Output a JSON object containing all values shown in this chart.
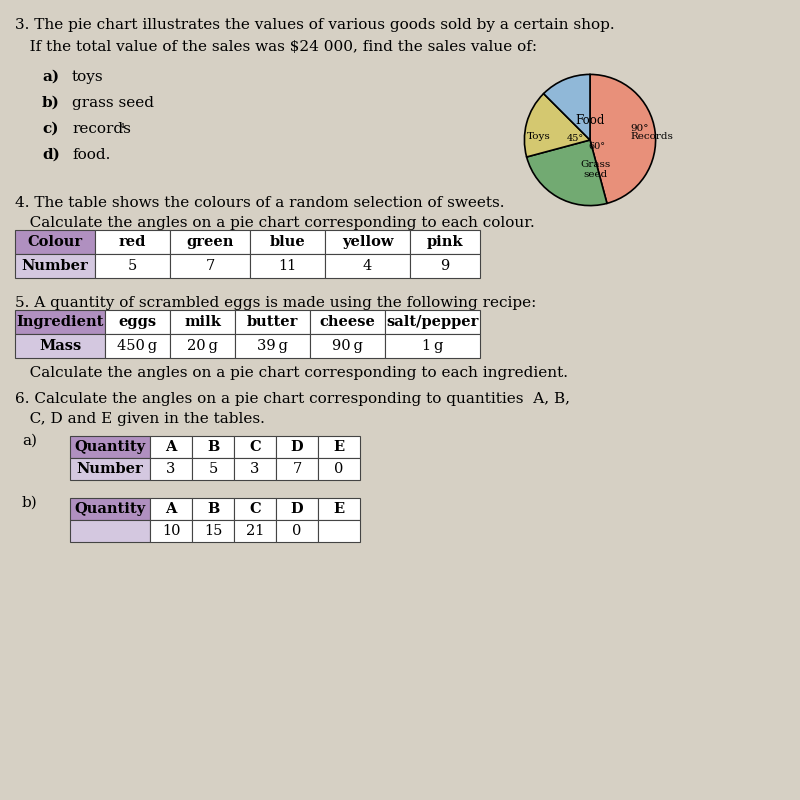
{
  "background_color": "#d6d0c4",
  "q3_line1": "3. The pie chart illustrates the values of various goods sold by a certain shop.",
  "q3_line2": "   If the total value of the sales was $24 000, find the sales value of:",
  "q3_items_bold": [
    "a)",
    "b)",
    "c)",
    "d)"
  ],
  "q3_items_text": [
    "toys",
    "grass seed",
    "records",
    "food."
  ],
  "q3_items_extra": [
    "",
    "",
    "₄",
    ""
  ],
  "pie_angles": [
    165,
    90,
    60,
    45
  ],
  "pie_colors": [
    "#e8907a",
    "#72aa72",
    "#d4c870",
    "#90b8d8"
  ],
  "pie_startangle": 90,
  "q4_line1": "4. The table shows the colours of a random selection of sweets.",
  "q4_line2": "   Calculate the angles on a pie chart corresponding to each colour.",
  "table4_header": [
    "Colour",
    "red",
    "green",
    "blue",
    "yellow",
    "pink"
  ],
  "table4_row": [
    "Number",
    "5",
    "7",
    "11",
    "4",
    "9"
  ],
  "q5_line1": "5. A quantity of scrambled eggs is made using the following recipe:",
  "table5_header": [
    "Ingredient",
    "eggs",
    "milk",
    "butter",
    "cheese",
    "salt/pepper"
  ],
  "table5_row": [
    "Mass",
    "450 g",
    "20 g",
    "39 g",
    "90 g",
    "1 g"
  ],
  "q5_line2": "   Calculate the angles on a pie chart corresponding to each ingredient.",
  "q6_line1": "6. Calculate the angles on a pie chart corresponding to quantities  A, B,",
  "q6_line2": "   C, D and E given in the tables.",
  "table6a_header": [
    "Quantity",
    "A",
    "B",
    "C",
    "D",
    "E"
  ],
  "table6a_row": [
    "Number",
    "3",
    "5",
    "3",
    "7",
    "0"
  ],
  "table6b_header": [
    "Quantity",
    "A",
    "B",
    "C",
    "D",
    "E"
  ],
  "table6b_row": [
    "",
    "10",
    "15",
    "21",
    "0",
    ""
  ],
  "header_color": "#b090c0",
  "row_color": "#d4c8e0",
  "font_size": 11
}
